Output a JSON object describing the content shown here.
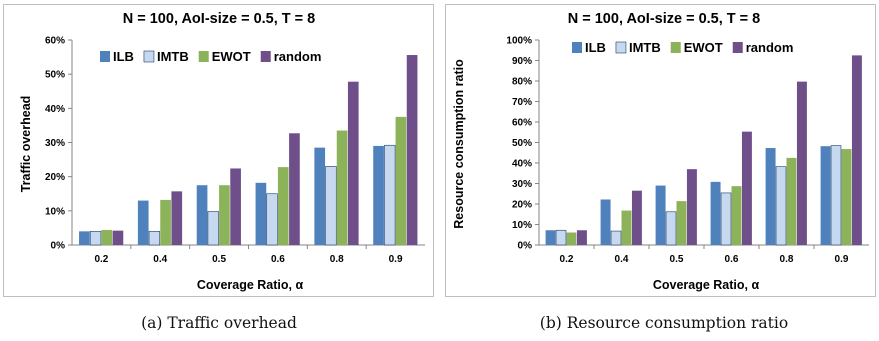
{
  "captions": {
    "a": "(a) Traffic overhead",
    "b": "(b) Resource consumption ratio"
  },
  "colors": {
    "ILB": "#4f81bd",
    "IMTB": "#c6d9f1",
    "EWOT": "#8db35a",
    "random": "#6f4f8a"
  },
  "chart_data": [
    {
      "type": "bar",
      "title": "N = 100, AoI-size = 0.5, T = 8",
      "xlabel": "Coverage Ratio, α",
      "ylabel": "Traffic overhead",
      "categories": [
        "0.2",
        "0.4",
        "0.5",
        "0.6",
        "0.8",
        "0.9"
      ],
      "ylim": [
        0,
        0.6
      ],
      "yticks": [
        "0%",
        "10%",
        "20%",
        "30%",
        "40%",
        "50%",
        "60%"
      ],
      "legend_position": "top",
      "grid": false,
      "series": [
        {
          "name": "ILB",
          "values": [
            0.04,
            0.13,
            0.175,
            0.182,
            0.285,
            0.29
          ]
        },
        {
          "name": "IMTB",
          "values": [
            0.04,
            0.04,
            0.098,
            0.15,
            0.23,
            0.292
          ]
        },
        {
          "name": "EWOT",
          "values": [
            0.044,
            0.132,
            0.175,
            0.228,
            0.335,
            0.375
          ]
        },
        {
          "name": "random",
          "values": [
            0.042,
            0.157,
            0.224,
            0.327,
            0.478,
            0.556
          ]
        }
      ]
    },
    {
      "type": "bar",
      "title": "N = 100, AoI-size = 0.5, T = 8",
      "xlabel": "Coverage Ratio, α",
      "ylabel": "Resource consumption ratio",
      "categories": [
        "0.2",
        "0.4",
        "0.5",
        "0.6",
        "0.8",
        "0.9"
      ],
      "ylim": [
        0,
        1.0
      ],
      "yticks": [
        "0%",
        "10%",
        "20%",
        "30%",
        "40%",
        "50%",
        "60%",
        "70%",
        "80%",
        "90%",
        "100%"
      ],
      "legend_position": "top",
      "grid": false,
      "series": [
        {
          "name": "ILB",
          "values": [
            0.072,
            0.222,
            0.29,
            0.308,
            0.473,
            0.482
          ]
        },
        {
          "name": "IMTB",
          "values": [
            0.072,
            0.068,
            0.162,
            0.254,
            0.382,
            0.485
          ]
        },
        {
          "name": "EWOT",
          "values": [
            0.061,
            0.168,
            0.214,
            0.287,
            0.425,
            0.468
          ]
        },
        {
          "name": "random",
          "values": [
            0.072,
            0.265,
            0.37,
            0.553,
            0.797,
            0.925
          ]
        }
      ]
    }
  ]
}
